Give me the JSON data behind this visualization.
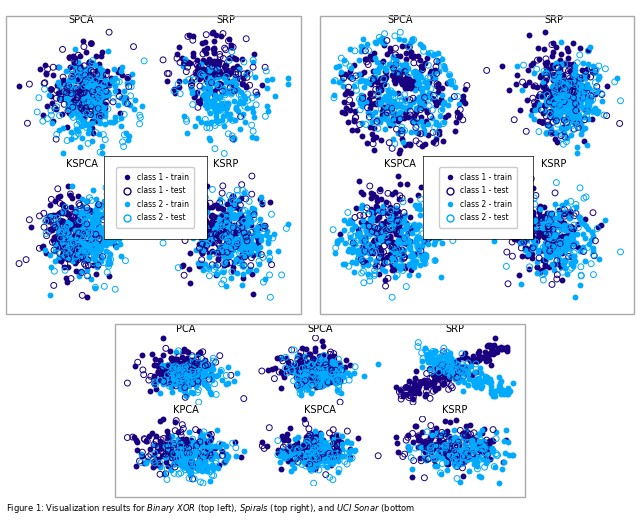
{
  "fig_bg": "#ffffff",
  "class1_train_color": "#1a0080",
  "class1_test_color": "#1a0080",
  "class2_train_color": "#00aaff",
  "class2_test_color": "#00aaff",
  "marker_size": 18,
  "edge_lw": 0.7,
  "caption": "Figure 1: Visualization results for Binary XOR (top left), Spirals (top right), and UCI Sonar (bottom",
  "legend_labels": [
    "class 1 - train",
    "class 1 - test",
    "class 2 - train",
    "class 2 - test"
  ],
  "tl_titles": [
    "SPCA",
    "SRP",
    "KSPCA",
    "KSRP"
  ],
  "tr_titles": [
    "SPCA",
    "SRP",
    "KSPCA",
    "KSRP"
  ],
  "bot_titles": [
    "PCA",
    "SPCA",
    "SRP",
    "KPCA",
    "KSPCA",
    "KSRP"
  ]
}
